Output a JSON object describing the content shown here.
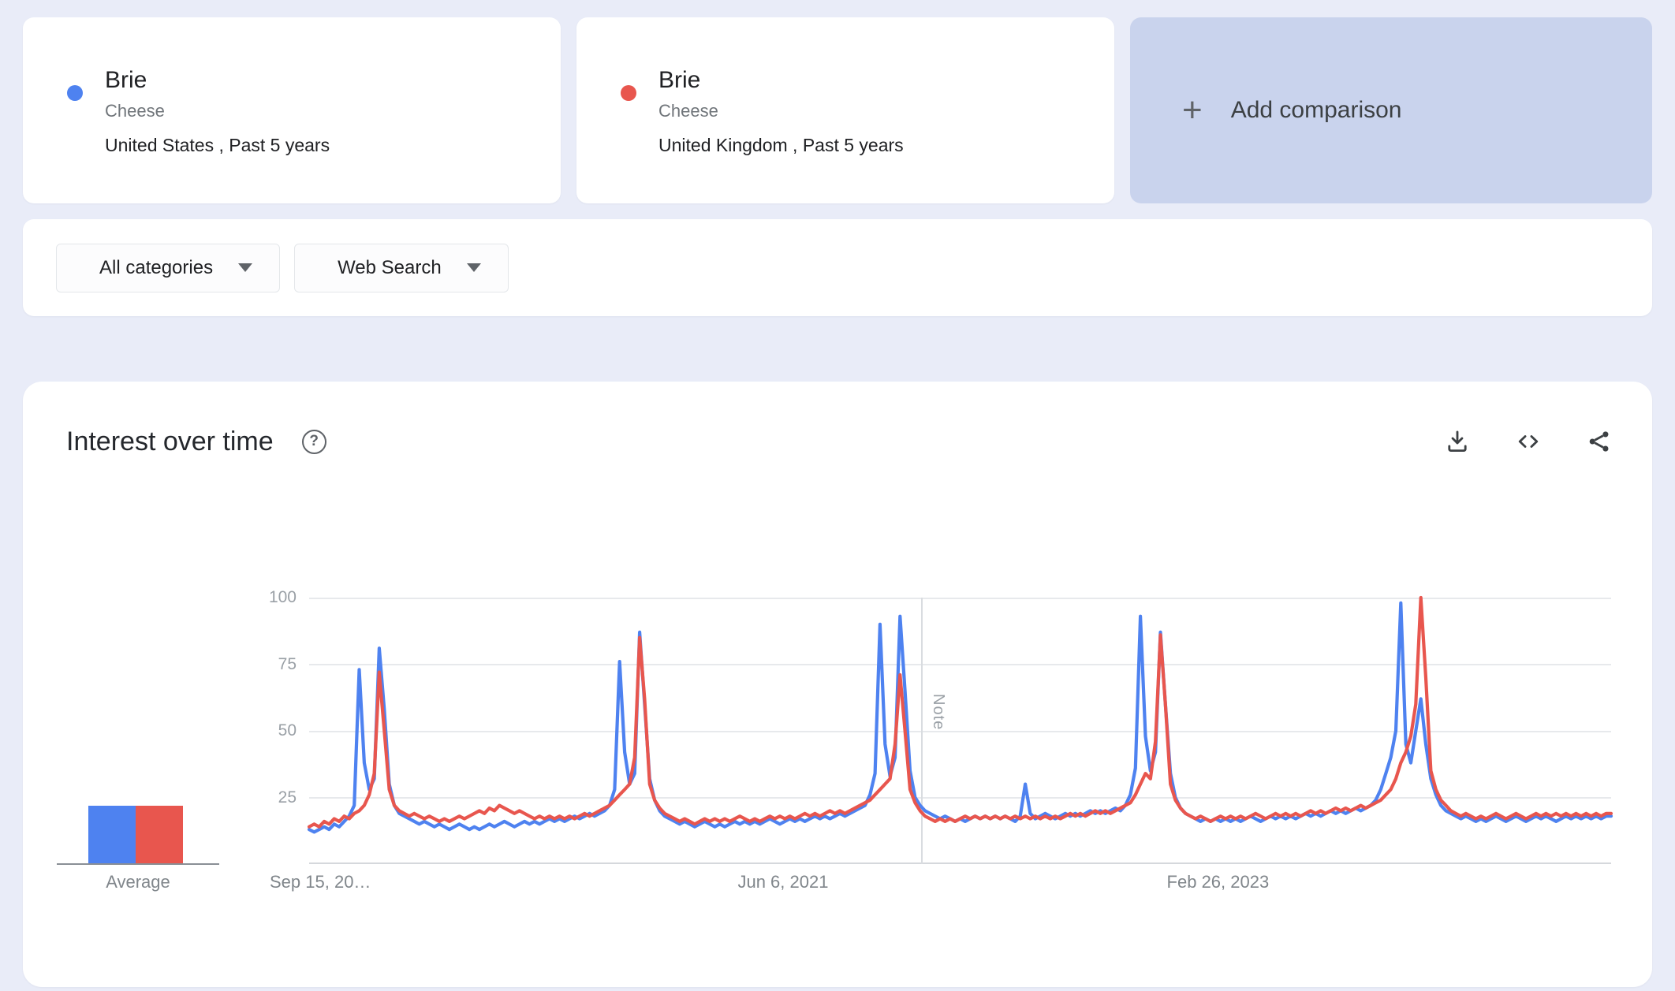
{
  "comparison": {
    "terms": [
      {
        "title": "Brie",
        "subtitle": "Cheese",
        "scope": "United States , Past 5 years",
        "color": "#4e82f0"
      },
      {
        "title": "Brie",
        "subtitle": "Cheese",
        "scope": "United Kingdom , Past 5 years",
        "color": "#e8564e"
      }
    ],
    "add": {
      "plus_glyph": "+",
      "label": "Add comparison"
    }
  },
  "filters": {
    "category_label": "All categories",
    "search_type_label": "Web Search"
  },
  "interest_card": {
    "title": "Interest over time",
    "help_glyph": "?",
    "icons": [
      "download-icon",
      "embed-code-icon",
      "share-icon",
      "help-icon"
    ]
  },
  "chart_data": {
    "type": "line",
    "title": "Interest over time",
    "ylim": [
      0,
      100
    ],
    "y_ticks": [
      25,
      50,
      75,
      100
    ],
    "grid": true,
    "x_ticks": [
      {
        "label": "Sep 15, 20…",
        "pos": 0
      },
      {
        "label": "Jun 6, 2021",
        "pos": 0.364
      },
      {
        "label": "Feb 26, 2023",
        "pos": 0.698
      }
    ],
    "note": {
      "label": "Note",
      "position": 0.47
    },
    "average_label": "Average",
    "series": [
      {
        "name": "Brie (United States)",
        "color": "#4e82f0",
        "average": 22,
        "values": [
          13,
          12,
          13,
          14,
          13,
          15,
          14,
          16,
          18,
          22,
          73,
          38,
          28,
          32,
          81,
          58,
          30,
          22,
          19,
          18,
          17,
          16,
          15,
          16,
          15,
          14,
          15,
          14,
          13,
          14,
          15,
          14,
          13,
          14,
          13,
          14,
          15,
          14,
          15,
          16,
          15,
          14,
          15,
          16,
          15,
          16,
          15,
          16,
          17,
          16,
          17,
          16,
          17,
          18,
          17,
          18,
          19,
          18,
          19,
          20,
          22,
          28,
          76,
          42,
          30,
          34,
          87,
          60,
          32,
          24,
          20,
          18,
          17,
          16,
          15,
          16,
          15,
          14,
          15,
          16,
          15,
          14,
          15,
          14,
          15,
          16,
          15,
          16,
          15,
          16,
          15,
          16,
          17,
          16,
          15,
          16,
          17,
          16,
          17,
          16,
          17,
          18,
          17,
          18,
          17,
          18,
          19,
          18,
          19,
          20,
          21,
          22,
          26,
          34,
          90,
          45,
          33,
          40,
          93,
          65,
          35,
          25,
          22,
          20,
          19,
          18,
          17,
          18,
          17,
          16,
          17,
          16,
          17,
          18,
          17,
          18,
          17,
          18,
          17,
          18,
          17,
          16,
          18,
          30,
          19,
          17,
          18,
          19,
          18,
          17,
          18,
          19,
          18,
          19,
          18,
          19,
          20,
          19,
          20,
          19,
          20,
          21,
          20,
          22,
          26,
          36,
          93,
          48,
          35,
          42,
          87,
          60,
          34,
          25,
          21,
          19,
          18,
          17,
          16,
          17,
          16,
          17,
          16,
          17,
          16,
          17,
          16,
          17,
          18,
          17,
          16,
          17,
          18,
          17,
          18,
          17,
          18,
          17,
          18,
          19,
          18,
          19,
          18,
          19,
          20,
          19,
          20,
          19,
          20,
          21,
          20,
          21,
          22,
          24,
          28,
          34,
          40,
          50,
          98,
          45,
          38,
          50,
          62,
          45,
          32,
          26,
          22,
          20,
          19,
          18,
          17,
          18,
          17,
          16,
          17,
          16,
          17,
          18,
          17,
          16,
          17,
          18,
          17,
          16,
          17,
          18,
          17,
          18,
          17,
          16,
          17,
          18,
          17,
          18,
          17,
          18,
          17,
          18,
          17,
          18,
          18
        ]
      },
      {
        "name": "Brie (United Kingdom)",
        "color": "#e8564e",
        "average": 22,
        "values": [
          14,
          15,
          14,
          16,
          15,
          17,
          16,
          18,
          17,
          19,
          20,
          22,
          26,
          34,
          72,
          50,
          28,
          22,
          20,
          19,
          18,
          19,
          18,
          17,
          18,
          17,
          16,
          17,
          16,
          17,
          18,
          17,
          18,
          19,
          20,
          19,
          21,
          20,
          22,
          21,
          20,
          19,
          20,
          19,
          18,
          17,
          18,
          17,
          18,
          17,
          18,
          17,
          18,
          17,
          18,
          19,
          18,
          19,
          20,
          21,
          22,
          24,
          26,
          28,
          30,
          40,
          85,
          62,
          30,
          24,
          21,
          19,
          18,
          17,
          16,
          17,
          16,
          15,
          16,
          17,
          16,
          17,
          16,
          17,
          16,
          17,
          18,
          17,
          16,
          17,
          16,
          17,
          18,
          17,
          18,
          17,
          18,
          17,
          18,
          19,
          18,
          19,
          18,
          19,
          20,
          19,
          20,
          19,
          20,
          21,
          22,
          23,
          24,
          26,
          28,
          30,
          32,
          45,
          71,
          50,
          28,
          23,
          20,
          18,
          17,
          16,
          17,
          16,
          17,
          16,
          17,
          18,
          17,
          18,
          17,
          18,
          17,
          18,
          17,
          18,
          17,
          18,
          17,
          18,
          17,
          18,
          17,
          18,
          17,
          18,
          17,
          18,
          19,
          18,
          19,
          18,
          19,
          20,
          19,
          20,
          19,
          20,
          21,
          22,
          23,
          26,
          30,
          34,
          32,
          46,
          86,
          60,
          30,
          24,
          21,
          19,
          18,
          17,
          18,
          17,
          16,
          17,
          18,
          17,
          18,
          17,
          18,
          17,
          18,
          19,
          18,
          17,
          18,
          19,
          18,
          19,
          18,
          19,
          18,
          19,
          20,
          19,
          20,
          19,
          20,
          21,
          20,
          21,
          20,
          21,
          22,
          21,
          22,
          23,
          24,
          26,
          28,
          32,
          38,
          42,
          48,
          60,
          100,
          70,
          35,
          28,
          24,
          22,
          20,
          19,
          18,
          19,
          18,
          17,
          18,
          17,
          18,
          19,
          18,
          17,
          18,
          19,
          18,
          17,
          18,
          19,
          18,
          19,
          18,
          19,
          18,
          19,
          18,
          19,
          18,
          19,
          18,
          19,
          18,
          19,
          19
        ]
      }
    ]
  }
}
